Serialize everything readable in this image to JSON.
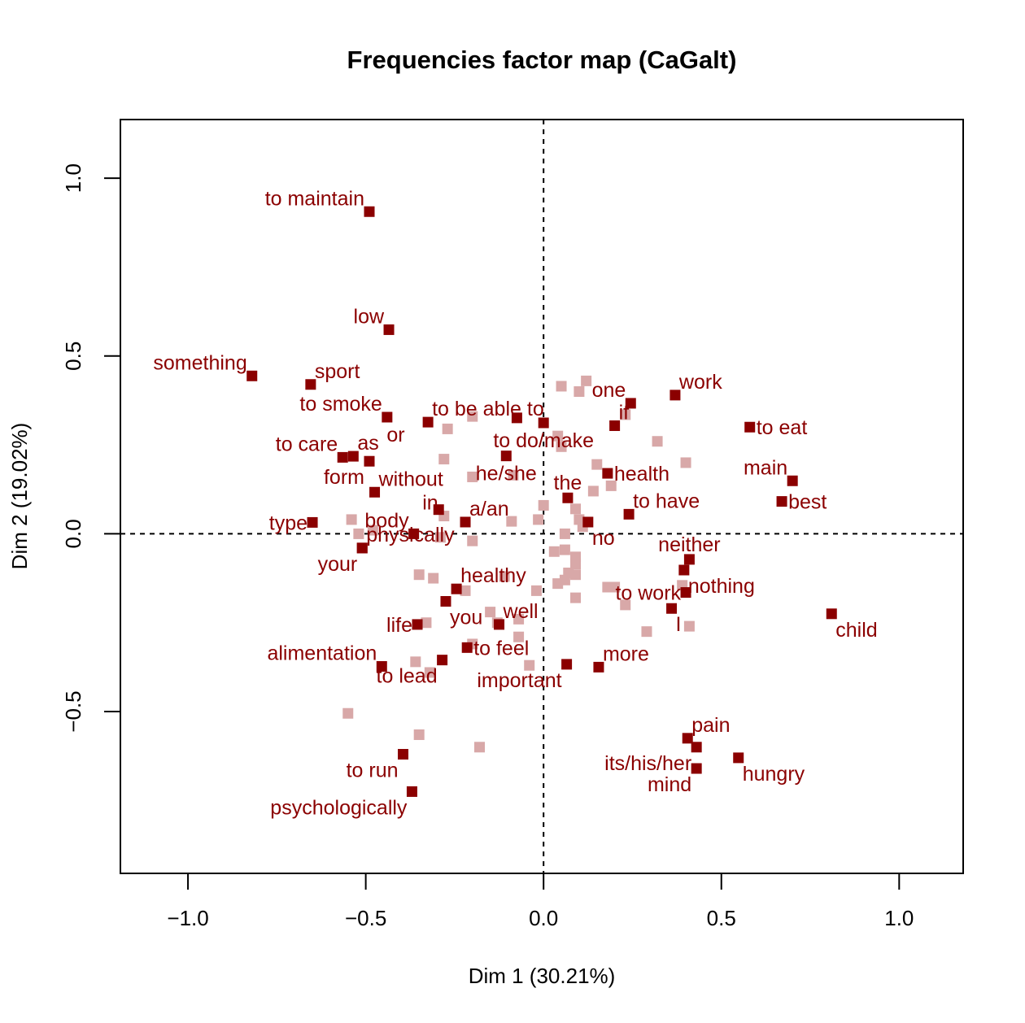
{
  "chart_data": {
    "type": "scatter",
    "title": "Frequencies factor map (CaGalt)",
    "xlabel": "Dim 1 (30.21%)",
    "ylabel": "Dim 2 (19.02%)",
    "xlim": [
      -1.19,
      1.18
    ],
    "ylim": [
      -0.955,
      1.165
    ],
    "x_ticks": [
      -1.0,
      -0.5,
      0.0,
      0.5,
      1.0
    ],
    "x_tick_labels": [
      "−1.0",
      "−0.5",
      "0.0",
      "0.5",
      "1.0"
    ],
    "y_ticks": [
      -0.5,
      0.0,
      0.5,
      1.0
    ],
    "y_tick_labels": [
      "−0.5",
      "0.0",
      "0.5",
      "1.0"
    ],
    "reference_lines": {
      "x": 0,
      "y": 0
    },
    "colors": {
      "highlighted": "#8B0000",
      "faded": "#D8A8A8",
      "text": "#8B0000"
    },
    "points": [
      {
        "label": "to maintain",
        "x": -0.49,
        "y": 0.906,
        "pos": "left-above"
      },
      {
        "label": "low",
        "x": -0.435,
        "y": 0.574,
        "pos": "left-above"
      },
      {
        "label": "something",
        "x": -0.82,
        "y": 0.444,
        "pos": "left-above"
      },
      {
        "label": "sport",
        "x": -0.655,
        "y": 0.42,
        "pos": "right-above"
      },
      {
        "label": "to smoke",
        "x": -0.44,
        "y": 0.328,
        "pos": "left-above"
      },
      {
        "label": "to be able to",
        "x": -0.325,
        "y": 0.314,
        "pos": "right-above"
      },
      {
        "label": "to do/make",
        "x": 0.0,
        "y": 0.312,
        "pos": "below"
      },
      {
        "label": "or",
        "x": -0.075,
        "y": 0.326,
        "pos": "none"
      },
      {
        "label": "one",
        "x": 0.245,
        "y": 0.367,
        "pos": "left-above"
      },
      {
        "label": "if",
        "x": 0.2,
        "y": 0.304,
        "pos": "right-above"
      },
      {
        "label": "work",
        "x": 0.37,
        "y": 0.39,
        "pos": "right-above"
      },
      {
        "label": "to eat",
        "x": 0.58,
        "y": 0.3,
        "pos": "right"
      },
      {
        "label": "to care",
        "x": -0.565,
        "y": 0.215,
        "pos": "left-above"
      },
      {
        "label": "as",
        "x": -0.535,
        "y": 0.218,
        "pos": "right-above"
      },
      {
        "label": "form",
        "x": -0.49,
        "y": 0.204,
        "pos": "left-below"
      },
      {
        "label": "he/she",
        "x": -0.105,
        "y": 0.219,
        "pos": "below"
      },
      {
        "label": "health",
        "x": 0.18,
        "y": 0.17,
        "pos": "right"
      },
      {
        "label": "main",
        "x": 0.7,
        "y": 0.149,
        "pos": "left-above"
      },
      {
        "label": "best",
        "x": 0.67,
        "y": 0.091,
        "pos": "right"
      },
      {
        "label": "without",
        "x": -0.475,
        "y": 0.117,
        "pos": "right-above"
      },
      {
        "label": "the",
        "x": 0.068,
        "y": 0.101,
        "pos": "above"
      },
      {
        "label": "to have",
        "x": 0.24,
        "y": 0.055,
        "pos": "right-above"
      },
      {
        "label": "in",
        "x": -0.295,
        "y": 0.068,
        "pos": "none"
      },
      {
        "label": "a/an",
        "x": -0.22,
        "y": 0.033,
        "pos": "right-above"
      },
      {
        "label": "no",
        "x": 0.125,
        "y": 0.033,
        "pos": "right-below"
      },
      {
        "label": "type",
        "x": -0.65,
        "y": 0.032,
        "pos": "left"
      },
      {
        "label": "body",
        "x": -0.365,
        "y": 0.0,
        "pos": "left-above"
      },
      {
        "label": "physically",
        "x": -0.51,
        "y": -0.04,
        "pos": "right-above"
      },
      {
        "label": "your",
        "x": -0.51,
        "y": -0.04,
        "pos": "left-below"
      },
      {
        "label": "neither",
        "x": 0.41,
        "y": -0.072,
        "pos": "above"
      },
      {
        "label": "nothing",
        "x": 0.395,
        "y": -0.102,
        "pos": "right-below"
      },
      {
        "label": "healthy",
        "x": -0.245,
        "y": -0.155,
        "pos": "right-above"
      },
      {
        "label": "to work",
        "x": 0.4,
        "y": -0.165,
        "pos": "left"
      },
      {
        "label": "you",
        "x": -0.275,
        "y": -0.19,
        "pos": "right-below"
      },
      {
        "label": "I",
        "x": 0.36,
        "y": -0.21,
        "pos": "right-below"
      },
      {
        "label": "child",
        "x": 0.81,
        "y": -0.225,
        "pos": "right-below"
      },
      {
        "label": "life",
        "x": -0.355,
        "y": -0.255,
        "pos": "left"
      },
      {
        "label": "well",
        "x": -0.125,
        "y": -0.255,
        "pos": "right-above"
      },
      {
        "label": "to feel",
        "x": -0.215,
        "y": -0.32,
        "pos": "right"
      },
      {
        "label": "alimentation",
        "x": -0.455,
        "y": -0.373,
        "pos": "left-above"
      },
      {
        "label": "to lead",
        "x": -0.285,
        "y": -0.355,
        "pos": "left-below"
      },
      {
        "label": "important",
        "x": 0.065,
        "y": -0.367,
        "pos": "left-below"
      },
      {
        "label": "more",
        "x": 0.155,
        "y": -0.375,
        "pos": "right-above"
      },
      {
        "label": "pain",
        "x": 0.405,
        "y": -0.575,
        "pos": "right-above"
      },
      {
        "label": "its/his/her",
        "x": 0.43,
        "y": -0.6,
        "pos": "left-below"
      },
      {
        "label": "hungry",
        "x": 0.548,
        "y": -0.63,
        "pos": "right-below"
      },
      {
        "label": "mind",
        "x": 0.43,
        "y": -0.66,
        "pos": "left-below"
      },
      {
        "label": "to run",
        "x": -0.395,
        "y": -0.62,
        "pos": "left-below"
      },
      {
        "label": "psychologically",
        "x": -0.37,
        "y": -0.725,
        "pos": "left-below"
      }
    ],
    "faded_points": [
      [
        0.05,
        0.415
      ],
      [
        0.12,
        0.43
      ],
      [
        0.1,
        0.4
      ],
      [
        0.23,
        0.335
      ],
      [
        0.32,
        0.26
      ],
      [
        0.4,
        0.2
      ],
      [
        0.15,
        0.195
      ],
      [
        0.19,
        0.135
      ],
      [
        0.14,
        0.12
      ],
      [
        0.04,
        0.275
      ],
      [
        0.05,
        0.245
      ],
      [
        0.0,
        0.08
      ],
      [
        0.1,
        0.04
      ],
      [
        0.09,
        0.07
      ],
      [
        0.11,
        0.02
      ],
      [
        -0.2,
        0.33
      ],
      [
        -0.27,
        0.295
      ],
      [
        -0.28,
        0.21
      ],
      [
        -0.2,
        0.16
      ],
      [
        -0.085,
        0.165
      ],
      [
        -0.09,
        0.035
      ],
      [
        -0.015,
        0.04
      ],
      [
        0.06,
        0.0
      ],
      [
        -0.54,
        0.04
      ],
      [
        -0.52,
        0.0
      ],
      [
        -0.48,
        0.01
      ],
      [
        -0.28,
        0.05
      ],
      [
        -0.29,
        -0.01
      ],
      [
        -0.2,
        -0.02
      ],
      [
        0.03,
        -0.05
      ],
      [
        0.06,
        -0.045
      ],
      [
        0.09,
        -0.065
      ],
      [
        0.09,
        -0.085
      ],
      [
        0.06,
        -0.13
      ],
      [
        0.07,
        -0.11
      ],
      [
        0.09,
        -0.115
      ],
      [
        0.04,
        -0.14
      ],
      [
        -0.02,
        -0.16
      ],
      [
        -0.11,
        -0.12
      ],
      [
        -0.35,
        -0.115
      ],
      [
        -0.31,
        -0.125
      ],
      [
        -0.22,
        -0.16
      ],
      [
        0.09,
        -0.18
      ],
      [
        0.18,
        -0.15
      ],
      [
        0.2,
        -0.15
      ],
      [
        0.23,
        -0.2
      ],
      [
        0.39,
        -0.145
      ],
      [
        0.41,
        -0.26
      ],
      [
        0.29,
        -0.275
      ],
      [
        -0.15,
        -0.22
      ],
      [
        -0.13,
        -0.25
      ],
      [
        -0.07,
        -0.24
      ],
      [
        -0.07,
        -0.29
      ],
      [
        -0.2,
        -0.31
      ],
      [
        -0.33,
        -0.25
      ],
      [
        -0.04,
        -0.37
      ],
      [
        -0.36,
        -0.36
      ],
      [
        -0.32,
        -0.39
      ],
      [
        -0.55,
        -0.505
      ],
      [
        -0.35,
        -0.565
      ],
      [
        -0.18,
        -0.6
      ]
    ]
  }
}
